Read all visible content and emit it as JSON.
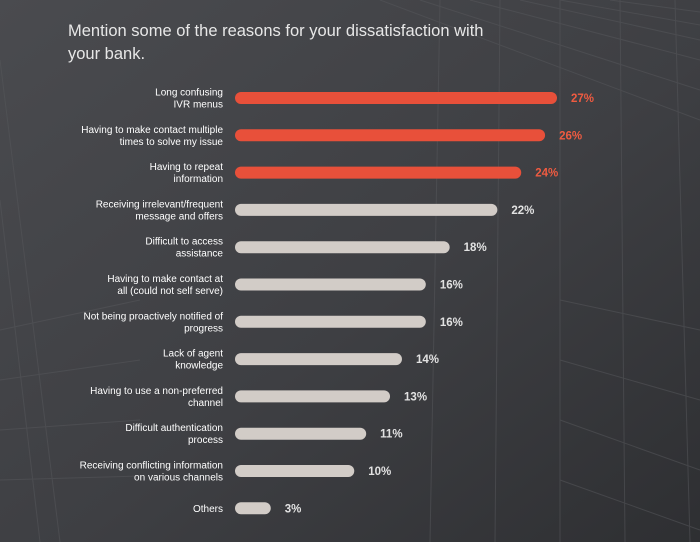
{
  "chart_data": {
    "type": "bar",
    "orientation": "horizontal",
    "title": "Mention some of the reasons for your dissatisfaction with your bank.",
    "categories": [
      [
        "Long confusing",
        "IVR menus"
      ],
      [
        "Having to make contact multiple",
        "times to solve my issue"
      ],
      [
        "Having to repeat",
        "information"
      ],
      [
        "Receiving irrelevant/frequent",
        "message and offers"
      ],
      [
        "Difficult to access",
        "assistance"
      ],
      [
        "Having to make contact at",
        "all (could not self serve)"
      ],
      [
        "Not being proactively notified of",
        "progress"
      ],
      [
        "Lack of agent",
        "knowledge"
      ],
      [
        "Having to use a non-preferred",
        "channel"
      ],
      [
        "Difficult authentication",
        "process"
      ],
      [
        "Receiving conflicting information",
        "on various channels"
      ],
      [
        "Others"
      ]
    ],
    "values": [
      27,
      26,
      24,
      22,
      18,
      16,
      16,
      14,
      13,
      11,
      10,
      3
    ],
    "value_labels": [
      "27%",
      "26%",
      "24%",
      "22%",
      "18%",
      "16%",
      "16%",
      "14%",
      "13%",
      "11%",
      "10%",
      "3%"
    ],
    "highlighted": [
      true,
      true,
      true,
      false,
      false,
      false,
      false,
      false,
      false,
      false,
      false,
      false
    ],
    "xlim": [
      0,
      27
    ],
    "grid": false,
    "legend": "none",
    "colors": {
      "highlight_bar": "#e8503a",
      "highlight_text": "#ef5b41",
      "default_bar": "#d2ccc7",
      "default_text": "#e2e2e2",
      "label_text": "#ffffff",
      "background": "#3f4044"
    }
  }
}
